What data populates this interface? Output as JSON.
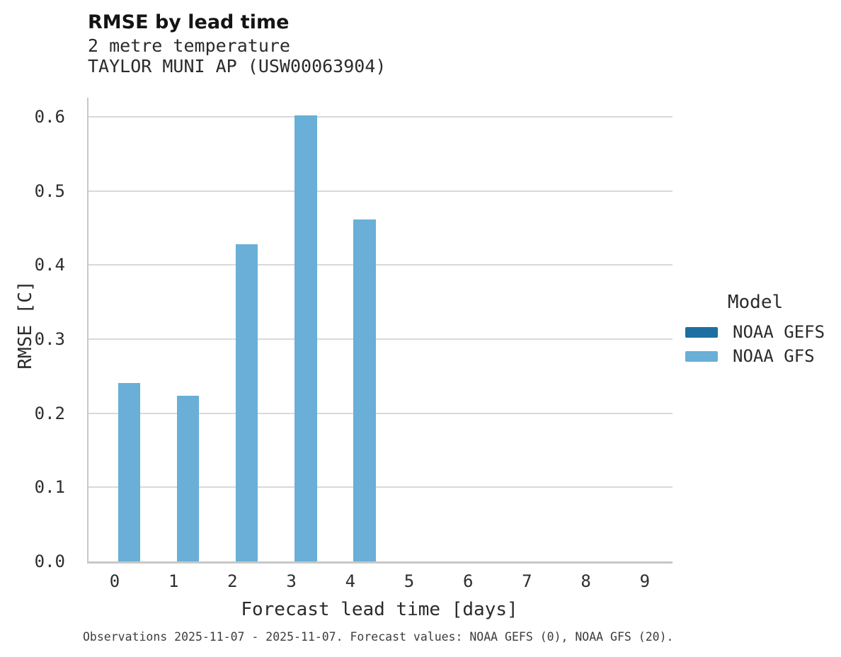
{
  "title": "RMSE by lead time",
  "subtitle_lines": [
    "2 metre temperature",
    "TAYLOR MUNI AP (USW00063904)"
  ],
  "caption": "Observations 2025-11-07 - 2025-11-07. Forecast values: NOAA GEFS (0), NOAA GFS (20).",
  "legend": {
    "title": "Model"
  },
  "colors": {
    "noaa_gefs": "#1d6fa1",
    "noaa_gfs": "#69afd7",
    "gridline": "#d9d9d9",
    "axis": "#c8c8c8"
  },
  "chart_data": {
    "type": "bar",
    "title": "RMSE by lead time",
    "subtitle": "2 metre temperature / TAYLOR MUNI AP (USW00063904)",
    "xlabel": "Forecast lead time [days]",
    "ylabel": "RMSE [C]",
    "categories": [
      "0",
      "1",
      "2",
      "3",
      "4",
      "5",
      "6",
      "7",
      "8",
      "9"
    ],
    "series": [
      {
        "name": "NOAA GEFS",
        "color": "#1d6fa1",
        "values": [
          null,
          null,
          null,
          null,
          null,
          null,
          null,
          null,
          null,
          null
        ]
      },
      {
        "name": "NOAA GFS",
        "color": "#69afd7",
        "values": [
          0.241,
          0.224,
          0.428,
          0.602,
          0.462,
          null,
          null,
          null,
          null,
          null
        ]
      }
    ],
    "yticks": [
      0.0,
      0.1,
      0.2,
      0.3,
      0.4,
      0.5,
      0.6
    ],
    "ytick_labels": [
      "0.0",
      "0.1",
      "0.2",
      "0.3",
      "0.4",
      "0.5",
      "0.6"
    ],
    "ylim": [
      0,
      0.626
    ],
    "grid": "horizontal",
    "legend_position": "right",
    "legend_title": "Model"
  }
}
